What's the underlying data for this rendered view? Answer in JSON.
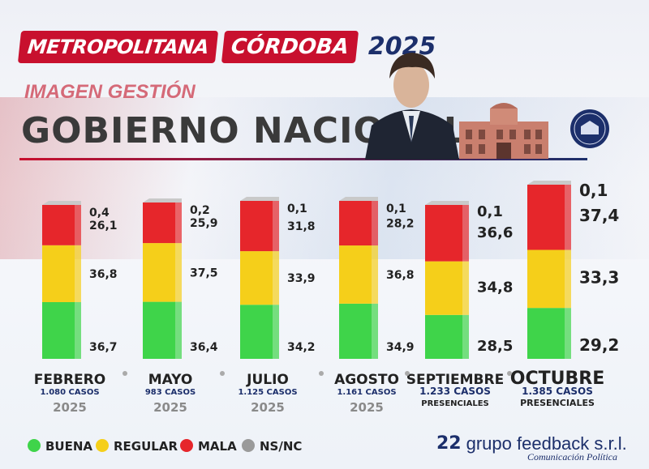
{
  "header": {
    "city_prefix": "METROPOLITANA",
    "city": "CÓRDOBA",
    "year": "2025",
    "subtitle": "IMAGEN GESTIÓN",
    "title": "GOBIERNO NACIONAL"
  },
  "colors": {
    "buena": "#3fd44a",
    "regular": "#f5cf1a",
    "mala": "#e6262b",
    "nsnc": "#9a9a9a"
  },
  "chart_data": {
    "type": "bar",
    "stacked": true,
    "categories": [
      "FEBRERO",
      "MAYO",
      "JULIO",
      "AGOSTO",
      "SEPTIEMBRE",
      "OCTUBRE"
    ],
    "category_meta": [
      {
        "cases": "1.080 CASOS",
        "year": "2025",
        "note": ""
      },
      {
        "cases": "983 CASOS",
        "year": "2025",
        "note": ""
      },
      {
        "cases": "1.125 CASOS",
        "year": "2025",
        "note": ""
      },
      {
        "cases": "1.161 CASOS",
        "year": "2025",
        "note": ""
      },
      {
        "cases": "1.233 CASOS",
        "year": "",
        "note": "PRESENCIALES"
      },
      {
        "cases": "1.385 CASOS",
        "year": "",
        "note": "PRESENCIALES"
      }
    ],
    "series": [
      {
        "name": "BUENA",
        "values": [
          36.7,
          36.4,
          34.2,
          34.9,
          28.5,
          29.2
        ]
      },
      {
        "name": "REGULAR",
        "values": [
          36.8,
          37.5,
          33.9,
          36.8,
          34.8,
          33.3
        ]
      },
      {
        "name": "MALA",
        "values": [
          26.1,
          25.9,
          31.8,
          28.2,
          36.6,
          37.4
        ]
      },
      {
        "name": "NS/NC",
        "values": [
          0.4,
          0.2,
          0.1,
          0.1,
          0.1,
          0.1
        ]
      }
    ],
    "value_labels": [
      [
        "36,7",
        "36,8",
        "26,1",
        "0,4"
      ],
      [
        "36,4",
        "37,5",
        "25,9",
        "0,2"
      ],
      [
        "34,2",
        "33,9",
        "31,8",
        "0,1"
      ],
      [
        "34,9",
        "36,8",
        "28,2",
        "0,1"
      ],
      [
        "28,5",
        "34,8",
        "36,6",
        "0,1"
      ],
      [
        "29,2",
        "33,3",
        "37,4",
        "0,1"
      ]
    ],
    "legend_position": "bottom-left"
  },
  "footer": {
    "logo_number": "22",
    "brand": "grupo feedback s.r.l.",
    "brand_sub": "Comunicación Política"
  }
}
